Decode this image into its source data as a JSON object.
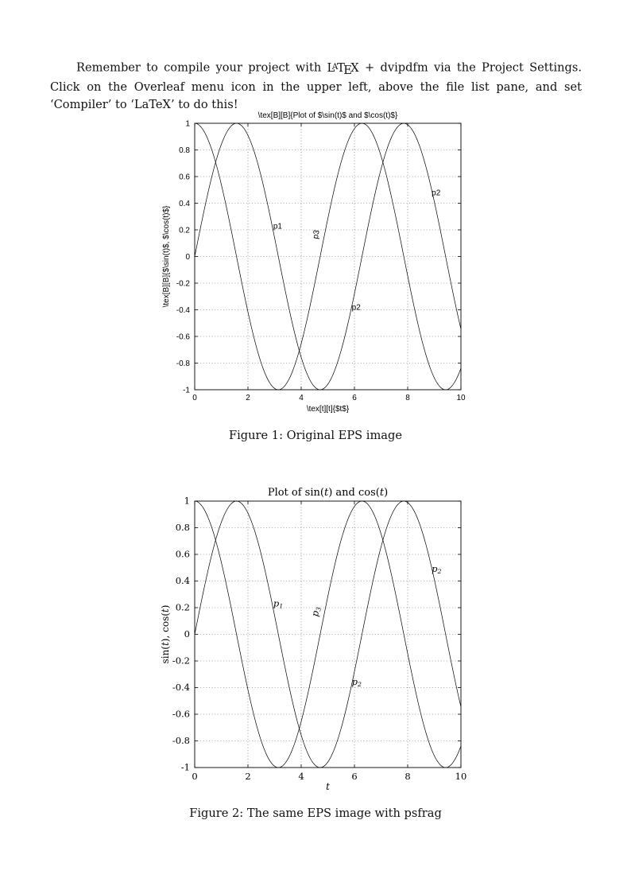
{
  "intro": {
    "part1": "Remember to compile your project with ",
    "latex": {
      "l": "L",
      "a": "A",
      "t": "T",
      "e": "E",
      "x": "X"
    },
    "part2": " + dvipdfm via the Project Settings. Click on the Overleaf menu icon in the upper left, above the file list pane, and set ‘Compiler’ to ‘LaTeX’ to do this!"
  },
  "figure1": {
    "caption": "Figure 1: Original EPS image"
  },
  "figure2": {
    "caption": "Figure 2: The same EPS image with psfrag"
  },
  "chart_data": [
    {
      "type": "line",
      "title": "\\tex[B][B]{Plot of $\\sin(t)$ and $\\cos(t)$}",
      "xlabel": "\\tex[t][t]{$t$}",
      "ylabel": "\\tex[B][B]{$\\sin(t)$, $\\cos(t)$}",
      "x_range": [
        0,
        10
      ],
      "ylim": [
        -1,
        1
      ],
      "xticks": [
        0,
        2,
        4,
        6,
        8,
        10
      ],
      "xtick_labels": [
        "0",
        "2",
        "4",
        "6",
        "8",
        "10"
      ],
      "yticks": [
        -1,
        -0.8,
        -0.6,
        -0.4,
        -0.2,
        0,
        0.2,
        0.4,
        0.6,
        0.8,
        1
      ],
      "ytick_labels": [
        "-1",
        "-0.8",
        "-0.6",
        "-0.4",
        "-0.2",
        "0",
        "0.2",
        "0.4",
        "0.6",
        "0.8",
        "1"
      ],
      "grid": true,
      "legend": "none",
      "font": "sans",
      "series": [
        {
          "name": "sin(t)",
          "fn": "sin"
        },
        {
          "name": "cos(t)",
          "fn": "cos"
        }
      ],
      "annotations": [
        {
          "text": "p1",
          "x": 2.95,
          "y": 0.21,
          "rotate": 0
        },
        {
          "text": "p3",
          "x": 4.62,
          "y": 0.13,
          "rotate": -80
        },
        {
          "text": "p2",
          "x": 5.9,
          "y": -0.4,
          "rotate": 0
        },
        {
          "text": "p2",
          "x": 8.9,
          "y": 0.46,
          "rotate": 0
        }
      ]
    },
    {
      "type": "line",
      "title": "Plot of sin(t) and cos(t)",
      "title_segments": [
        {
          "t": "Plot of sin("
        },
        {
          "t": "t",
          "i": true
        },
        {
          "t": ") and cos("
        },
        {
          "t": "t",
          "i": true
        },
        {
          "t": ")"
        }
      ],
      "xlabel": "t",
      "xlabel_segments": [
        {
          "t": "t",
          "i": true
        }
      ],
      "ylabel": "sin(t), cos(t)",
      "ylabel_segments": [
        {
          "t": "sin("
        },
        {
          "t": "t",
          "i": true
        },
        {
          "t": "), cos("
        },
        {
          "t": "t",
          "i": true
        },
        {
          "t": ")"
        }
      ],
      "x_range": [
        0,
        10
      ],
      "ylim": [
        -1,
        1
      ],
      "xticks": [
        0,
        2,
        4,
        6,
        8,
        10
      ],
      "xtick_labels": [
        "0",
        "2",
        "4",
        "6",
        "8",
        "10"
      ],
      "yticks": [
        -1,
        -0.8,
        -0.6,
        -0.4,
        -0.2,
        0,
        0.2,
        0.4,
        0.6,
        0.8,
        1
      ],
      "ytick_labels": [
        "-1",
        "-0.8",
        "-0.6",
        "-0.4",
        "-0.2",
        "0",
        "0.2",
        "0.4",
        "0.6",
        "0.8",
        "1"
      ],
      "grid": true,
      "legend": "none",
      "font": "serif",
      "series": [
        {
          "name": "sin(t)",
          "fn": "sin"
        },
        {
          "name": "cos(t)",
          "fn": "cos"
        }
      ],
      "annotations": [
        {
          "text": "p",
          "sub": "1",
          "i": true,
          "x": 2.95,
          "y": 0.21,
          "rotate": 0
        },
        {
          "text": "p",
          "sub": "3",
          "i": true,
          "x": 4.62,
          "y": 0.13,
          "rotate": -80
        },
        {
          "text": "p",
          "sub": "2",
          "i": true,
          "x": 5.9,
          "y": -0.38,
          "rotate": 0
        },
        {
          "text": "p",
          "sub": "2",
          "i": true,
          "x": 8.9,
          "y": 0.47,
          "rotate": 0
        }
      ]
    }
  ]
}
